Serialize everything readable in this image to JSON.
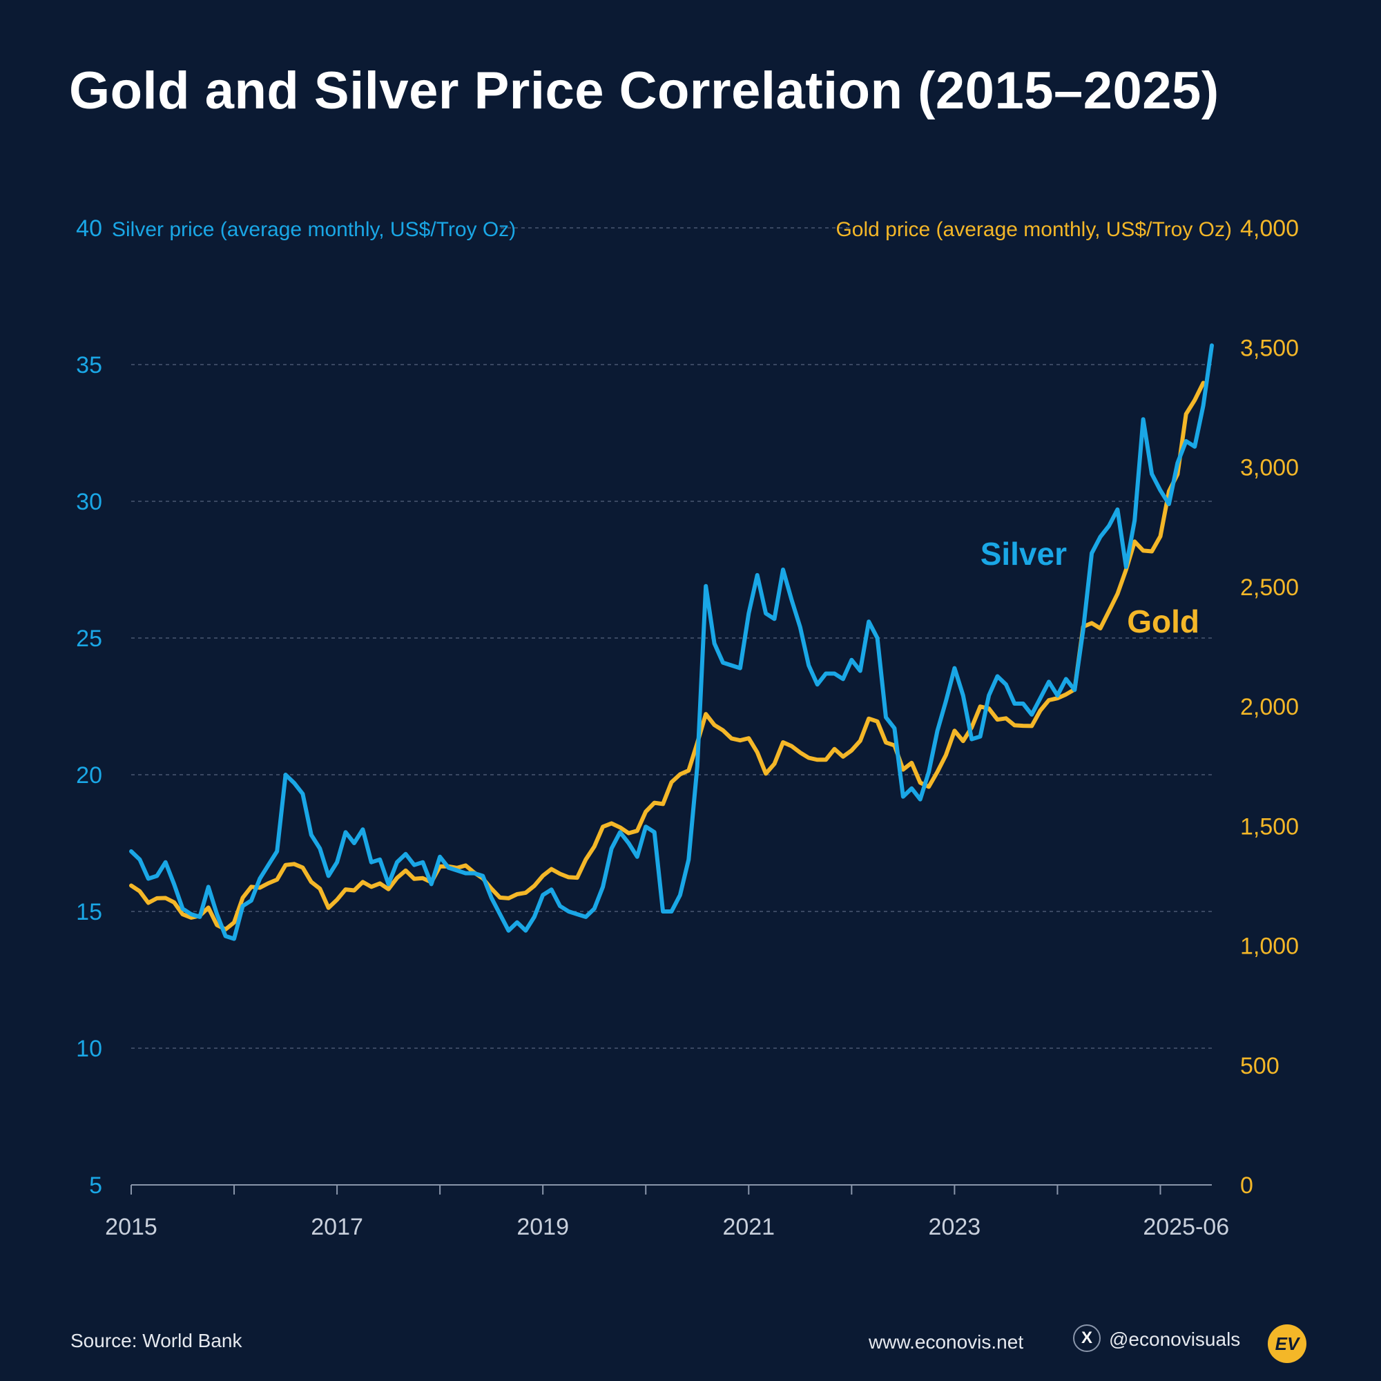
{
  "chart_data": {
    "type": "line",
    "title": "Gold and Silver Price Correlation (2015–2025)",
    "left_axis": {
      "label": "Silver price (average monthly, US$/Troy Oz)",
      "range": [
        5,
        40
      ],
      "ticks": [
        5,
        10,
        15,
        20,
        25,
        30,
        35,
        40
      ],
      "tick_labels": [
        "5",
        "10",
        "15",
        "20",
        "25",
        "30",
        "35",
        "40"
      ],
      "color": "#1aa7e6"
    },
    "right_axis": {
      "label": "Gold price (average monthly, US$/Troy Oz)",
      "range": [
        0,
        4000
      ],
      "ticks": [
        0,
        500,
        1000,
        1500,
        2000,
        2500,
        3000,
        3500,
        4000
      ],
      "tick_labels": [
        "0",
        "500",
        "1,000",
        "1,500",
        "2,000",
        "2,500",
        "3,000",
        "3,500",
        "4,000"
      ],
      "color": "#f4b728"
    },
    "x_axis": {
      "range": [
        2015.0,
        2025.5
      ],
      "ticks": [
        2015,
        2016,
        2017,
        2018,
        2019,
        2020,
        2021,
        2022,
        2023,
        2024,
        2025
      ],
      "labels": [
        {
          "value": 2015,
          "text": "2015"
        },
        {
          "value": 2017,
          "text": "2017"
        },
        {
          "value": 2019,
          "text": "2019"
        },
        {
          "value": 2021,
          "text": "2021"
        },
        {
          "value": 2023,
          "text": "2023"
        },
        {
          "value": 2025.25,
          "text": "2025-06"
        }
      ]
    },
    "grid": true,
    "series": [
      {
        "name": "Silver",
        "label": "Silver",
        "axis": "left",
        "color": "#1aa7e6",
        "start": "2015-01",
        "values": [
          17.2,
          16.9,
          16.2,
          16.3,
          16.8,
          16.0,
          15.1,
          14.9,
          14.8,
          15.9,
          14.9,
          14.1,
          14.0,
          15.2,
          15.4,
          16.2,
          16.7,
          17.2,
          20.0,
          19.7,
          19.3,
          17.8,
          17.3,
          16.3,
          16.8,
          17.9,
          17.5,
          18.0,
          16.8,
          16.9,
          16.0,
          16.8,
          17.1,
          16.7,
          16.8,
          16.0,
          17.0,
          16.6,
          16.5,
          16.4,
          16.4,
          16.3,
          15.5,
          14.9,
          14.3,
          14.6,
          14.3,
          14.8,
          15.6,
          15.8,
          15.2,
          15.0,
          14.9,
          14.8,
          15.1,
          15.9,
          17.3,
          17.9,
          17.5,
          17.0,
          18.1,
          17.9,
          15.0,
          15.0,
          15.6,
          16.9,
          20.3,
          26.9,
          24.8,
          24.1,
          24.0,
          23.9,
          25.9,
          27.3,
          25.9,
          25.7,
          27.5,
          26.4,
          25.4,
          24.0,
          23.3,
          23.7,
          23.7,
          23.5,
          24.2,
          23.8,
          25.6,
          25.0,
          22.1,
          21.7,
          19.2,
          19.5,
          19.1,
          20.1,
          21.6,
          22.7,
          23.9,
          22.9,
          21.3,
          21.4,
          22.9,
          23.6,
          23.3,
          22.6,
          22.6,
          22.2,
          22.8,
          23.4,
          22.9,
          23.5,
          23.1,
          25.3,
          28.1,
          28.7,
          29.1,
          29.7,
          27.6,
          29.3,
          33.0,
          31.0,
          30.4,
          29.9,
          31.4,
          32.2,
          32.0,
          33.5,
          35.7
        ]
      },
      {
        "name": "Gold",
        "label": "Gold",
        "axis": "right",
        "color": "#f4b728",
        "start": "2015-01",
        "values": [
          1251,
          1227,
          1179,
          1198,
          1199,
          1181,
          1131,
          1117,
          1125,
          1159,
          1086,
          1068,
          1097,
          1200,
          1246,
          1242,
          1261,
          1276,
          1337,
          1341,
          1326,
          1266,
          1238,
          1158,
          1192,
          1235,
          1231,
          1266,
          1246,
          1260,
          1236,
          1283,
          1314,
          1279,
          1282,
          1265,
          1331,
          1331,
          1325,
          1335,
          1305,
          1281,
          1238,
          1201,
          1198,
          1215,
          1221,
          1250,
          1292,
          1320,
          1300,
          1286,
          1284,
          1360,
          1414,
          1497,
          1511,
          1494,
          1470,
          1480,
          1560,
          1597,
          1592,
          1683,
          1716,
          1732,
          1847,
          1968,
          1922,
          1900,
          1866,
          1858,
          1867,
          1808,
          1719,
          1760,
          1850,
          1834,
          1807,
          1785,
          1777,
          1777,
          1822,
          1790,
          1816,
          1856,
          1949,
          1937,
          1849,
          1837,
          1736,
          1764,
          1681,
          1664,
          1726,
          1797,
          1898,
          1855,
          1912,
          1999,
          1991,
          1945,
          1950,
          1921,
          1919,
          1918,
          1983,
          2026,
          2034,
          2050,
          2071,
          2333,
          2348,
          2326,
          2398,
          2470,
          2571,
          2689,
          2651,
          2648,
          2711,
          2899,
          2970,
          3222,
          3280,
          3352
        ]
      }
    ],
    "annotations": [
      "Silver",
      "Gold"
    ]
  },
  "footer": {
    "source": "Source: World Bank",
    "website": "www.econovis.net",
    "x_glyph": "X",
    "handle": "@econovisuals",
    "logo": "EV",
    "x_icon": "x-logo-icon"
  }
}
